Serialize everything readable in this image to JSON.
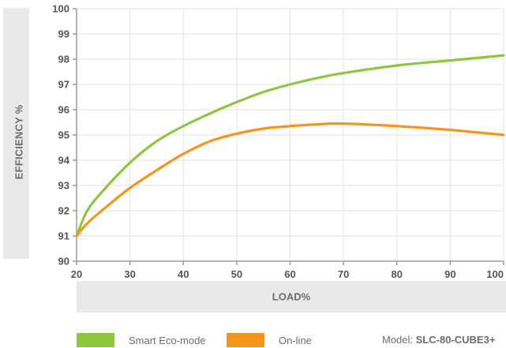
{
  "chart_data": {
    "type": "line",
    "ylabel": "EFFICIENCY %",
    "xlabel": "LOAD%",
    "xlim": [
      20,
      100
    ],
    "ylim": [
      90,
      100
    ],
    "x_ticks": [
      "20",
      "30",
      "40",
      "50",
      "60",
      "70",
      "80",
      "90",
      "100"
    ],
    "y_ticks": [
      "90",
      "91",
      "92",
      "93",
      "94",
      "95",
      "96",
      "97",
      "98",
      "99",
      "100"
    ],
    "grid": true,
    "series": [
      {
        "name": "Smart Eco-mode",
        "color": "#8dc63f",
        "x": [
          20,
          22,
          25,
          30,
          35,
          40,
          45,
          50,
          55,
          60,
          65,
          70,
          80,
          90,
          100
        ],
        "values": [
          91.0,
          92.0,
          92.8,
          93.9,
          94.75,
          95.35,
          95.85,
          96.3,
          96.7,
          97.0,
          97.25,
          97.45,
          97.75,
          97.95,
          98.15
        ]
      },
      {
        "name": "On-line",
        "color": "#f7941d",
        "x": [
          20,
          22,
          25,
          30,
          35,
          40,
          45,
          50,
          55,
          60,
          65,
          70,
          80,
          90,
          100
        ],
        "values": [
          91.0,
          91.5,
          92.05,
          92.9,
          93.6,
          94.25,
          94.75,
          95.05,
          95.25,
          95.35,
          95.42,
          95.45,
          95.35,
          95.2,
          95.0
        ]
      }
    ]
  },
  "legend": {
    "eco_label": "Smart Eco-mode",
    "online_label": "On-line",
    "model_prefix": "Model: ",
    "model_name": "SLC-80-CUBE3+"
  }
}
